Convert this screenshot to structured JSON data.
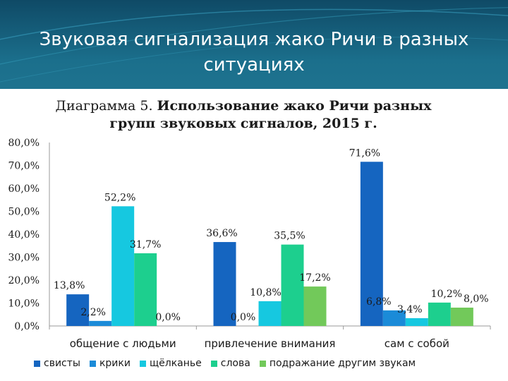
{
  "slide": {
    "title": "Звуковая сигнализация жако Ричи в разных ситуациях"
  },
  "chart_data": {
    "type": "bar",
    "title_prefix": "Диаграмма 5.",
    "title_main": "Использование жако Ричи разных групп звуковых сигналов, 2015 г.",
    "categories": [
      "общение с людьми",
      "привлечение внимания",
      "сам с собой"
    ],
    "series": [
      {
        "name": "свисты",
        "color": "#1565c0",
        "values": [
          13.8,
          36.6,
          71.6
        ],
        "labels": [
          "13,8%",
          "36,6%",
          "71,6%"
        ]
      },
      {
        "name": "крики",
        "color": "#1b8bd8",
        "values": [
          2.2,
          0.0,
          6.8
        ],
        "labels": [
          "2,2%",
          "0,0%",
          "6,8%"
        ]
      },
      {
        "name": "щёлканье",
        "color": "#16c8e0",
        "values": [
          52.2,
          10.8,
          3.4
        ],
        "labels": [
          "52,2%",
          "10,8%",
          "3,4%"
        ]
      },
      {
        "name": "слова",
        "color": "#1dcf8e",
        "values": [
          31.7,
          35.5,
          10.2
        ],
        "labels": [
          "31,7%",
          "35,5%",
          "10,2%"
        ]
      },
      {
        "name": "подражание другим звукам",
        "color": "#72c95a",
        "values": [
          0.0,
          17.2,
          8.0
        ],
        "labels": [
          "0,0%",
          "17,2%",
          "8,0%"
        ]
      }
    ],
    "ylim": [
      0,
      80
    ],
    "yticks": [
      "0,0%",
      "10,0%",
      "20,0%",
      "30,0%",
      "40,0%",
      "50,0%",
      "60,0%",
      "70,0%",
      "80,0%"
    ],
    "xlabel": "",
    "ylabel": "",
    "grid": false,
    "legend": "bottom"
  }
}
